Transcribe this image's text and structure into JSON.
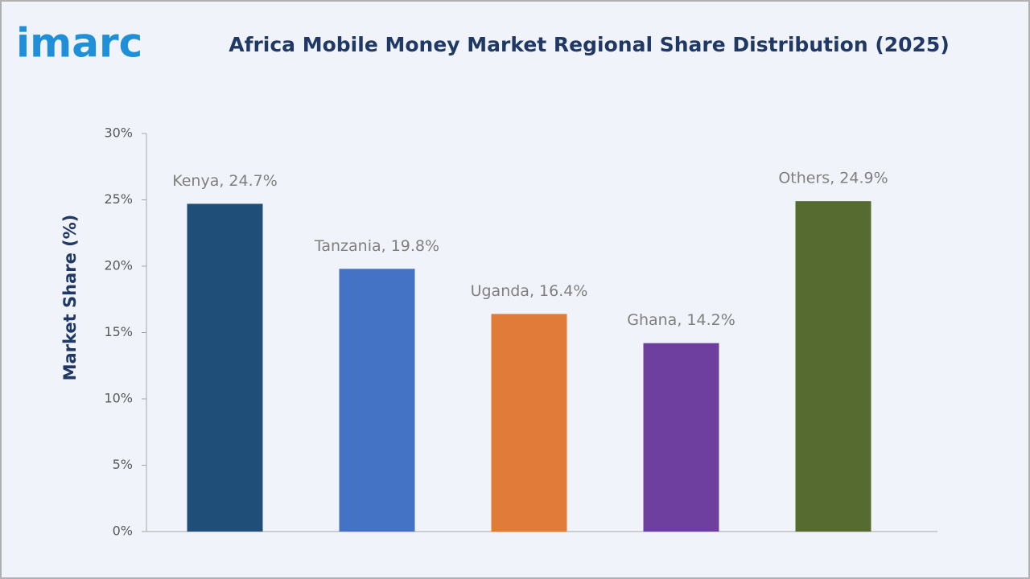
{
  "brand": "imarc",
  "chart_data": {
    "type": "bar",
    "title": "Africa Mobile Money Market Regional Share Distribution (2025)",
    "y_label": "Market Share (%)",
    "categories": [
      "Kenya",
      "Tanzania",
      "Uganda",
      "Ghana",
      "Others"
    ],
    "values": [
      24.7,
      19.8,
      16.4,
      14.2,
      24.9
    ],
    "value_labels": [
      "Kenya, 24.7%",
      "Tanzania, 19.8%",
      "Uganda, 16.4%",
      "Ghana, 14.2%",
      "Others, 24.9%"
    ],
    "colors": [
      "#1f4e79",
      "#4472c4",
      "#e07b39",
      "#6f3f9f",
      "#556b2f"
    ],
    "ylim": [
      0,
      30
    ],
    "yticks": [
      {
        "value": 0,
        "label": "0%"
      },
      {
        "value": 5,
        "label": "5%"
      },
      {
        "value": 10,
        "label": "10%"
      },
      {
        "value": 15,
        "label": "15%"
      },
      {
        "value": 20,
        "label": "20%"
      },
      {
        "value": 25,
        "label": "25%"
      },
      {
        "value": 30,
        "label": "30%"
      }
    ],
    "grid": false
  }
}
